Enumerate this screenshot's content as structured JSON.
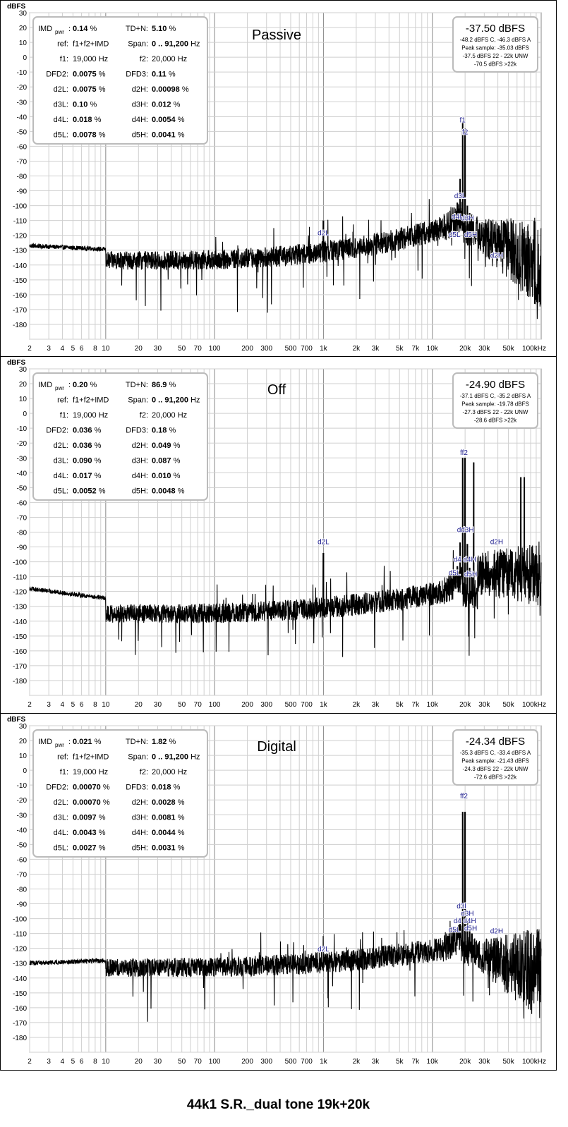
{
  "caption": "44k1 S.R._dual tone 19k+20k",
  "chart_data": [
    {
      "type": "line",
      "title": "Passive",
      "ylabel": "dBFS",
      "xlabel": "",
      "x_scale": "log",
      "xlim": [
        2,
        100000
      ],
      "ylim": [
        -190,
        30
      ],
      "grid": true,
      "x_ticks": [
        2,
        3,
        4,
        5,
        6,
        8,
        10,
        20,
        30,
        50,
        70,
        100,
        200,
        300,
        500,
        700,
        1000,
        2000,
        3000,
        5000,
        7000,
        10000,
        20000,
        30000,
        50000,
        100000
      ],
      "x_tick_labels": [
        "2",
        "3",
        "4",
        "5",
        "6",
        "8",
        "10",
        "20",
        "30",
        "50",
        "70",
        "100",
        "200",
        "300",
        "500",
        "700",
        "1k",
        "2k",
        "3k",
        "5k",
        "7k",
        "10k",
        "20k",
        "30k",
        "50k",
        "100kHz"
      ],
      "y_ticks": [
        30,
        20,
        10,
        0,
        -10,
        -20,
        -30,
        -40,
        -50,
        -60,
        -70,
        -80,
        -90,
        -100,
        -110,
        -120,
        -130,
        -140,
        -150,
        -160,
        -170,
        -180
      ],
      "info_box": [
        {
          "label": "IMD",
          "sub": "pwr",
          "value": "0.14",
          "unit": "%",
          "label2": "TD+N:",
          "value2": "5.10",
          "unit2": "%"
        },
        {
          "label": "ref:",
          "plain": "f1+f2+IMD",
          "label2": "Span:",
          "value2": "0 .. 91,200",
          "unit2": "Hz"
        },
        {
          "label": "f1:",
          "plain": "19,000 Hz",
          "label2": "f2:",
          "plain2": "20,000 Hz"
        },
        {
          "label": "DFD2:",
          "value": "0.0075",
          "unit": "%",
          "label2": "DFD3:",
          "value2": "0.11",
          "unit2": "%"
        },
        {
          "label": "d2L:",
          "value": "0.0075",
          "unit": "%",
          "label2": "d2H:",
          "value2": "0.00098",
          "unit2": "%"
        },
        {
          "label": "d3L:",
          "value": "0.10",
          "unit": "%",
          "label2": "d3H:",
          "value2": "0.012",
          "unit2": "%"
        },
        {
          "label": "d4L:",
          "value": "0.018",
          "unit": "%",
          "label2": "d4H:",
          "value2": "0.0054",
          "unit2": "%"
        },
        {
          "label": "d5L:",
          "value": "0.0078",
          "unit": "%",
          "label2": "d5H:",
          "value2": "0.0041",
          "unit2": "%"
        }
      ],
      "level_box": {
        "main": "-37.50 dBFS",
        "lines": [
          "-48.2 dBFS C, -46.3 dBFS A",
          "Peak sample: -35.03 dBFS",
          "-37.5 dBFS 22 - 22k UNW",
          "-70.5 dBFS >22k"
        ]
      },
      "floor_start": -127,
      "floor_mid": -137,
      "floor_rise": -115,
      "hf_behavior": "decay",
      "hf_level": -140,
      "peaks": [
        {
          "x": 19000,
          "y": -44,
          "label": "f1"
        },
        {
          "x": 20000,
          "y": -48,
          "label": "f2"
        },
        {
          "x": 18000,
          "y": -82,
          "label": "d3L"
        },
        {
          "x": 21000,
          "y": -100,
          "label": "d3H"
        },
        {
          "x": 17000,
          "y": -98,
          "label": "d4L"
        },
        {
          "x": 22000,
          "y": -105,
          "label": "d4H"
        },
        {
          "x": 16000,
          "y": -106,
          "label": "d5L"
        },
        {
          "x": 23000,
          "y": -106,
          "label": "d5H"
        },
        {
          "x": 1000,
          "y": -110,
          "label": "d2L"
        },
        {
          "x": 39000,
          "y": -125,
          "label": "d2H"
        }
      ],
      "annotations": [
        {
          "text": "f1",
          "x": 19000,
          "y": -44
        },
        {
          "text": "f2",
          "x": 20000,
          "y": -52
        },
        {
          "text": "d3L",
          "x": 18000,
          "y": -95
        },
        {
          "text": "d4L",
          "x": 17000,
          "y": -109
        },
        {
          "text": "d3H",
          "x": 21000,
          "y": -110
        },
        {
          "text": "d5L",
          "x": 16000,
          "y": -121
        },
        {
          "text": "d5H",
          "x": 22500,
          "y": -121
        },
        {
          "text": "d2L",
          "x": 1000,
          "y": -120
        },
        {
          "text": "d2H",
          "x": 39000,
          "y": -135
        }
      ]
    },
    {
      "type": "line",
      "title": "Off",
      "ylabel": "dBFS",
      "xlabel": "",
      "x_scale": "log",
      "xlim": [
        2,
        100000
      ],
      "ylim": [
        -190,
        30
      ],
      "grid": true,
      "x_ticks": [
        2,
        3,
        4,
        5,
        6,
        8,
        10,
        20,
        30,
        50,
        70,
        100,
        200,
        300,
        500,
        700,
        1000,
        2000,
        3000,
        5000,
        7000,
        10000,
        20000,
        30000,
        50000,
        100000
      ],
      "x_tick_labels": [
        "2",
        "3",
        "4",
        "5",
        "6",
        "8",
        "10",
        "20",
        "30",
        "50",
        "70",
        "100",
        "200",
        "300",
        "500",
        "700",
        "1k",
        "2k",
        "3k",
        "5k",
        "7k",
        "10k",
        "20k",
        "30k",
        "50k",
        "100kHz"
      ],
      "y_ticks": [
        30,
        20,
        10,
        0,
        -10,
        -20,
        -30,
        -40,
        -50,
        -60,
        -70,
        -80,
        -90,
        -100,
        -110,
        -120,
        -130,
        -140,
        -150,
        -160,
        -170,
        -180
      ],
      "info_box": [
        {
          "label": "IMD",
          "sub": "pwr",
          "value": "0.20",
          "unit": "%",
          "label2": "TD+N:",
          "value2": "86.9",
          "unit2": "%"
        },
        {
          "label": "ref:",
          "plain": "f1+f2+IMD",
          "label2": "Span:",
          "value2": "0 .. 91,200",
          "unit2": "Hz"
        },
        {
          "label": "f1:",
          "plain": "19,000 Hz",
          "label2": "f2:",
          "plain2": "20,000 Hz"
        },
        {
          "label": "DFD2:",
          "value": "0.036",
          "unit": "%",
          "label2": "DFD3:",
          "value2": "0.18",
          "unit2": "%"
        },
        {
          "label": "d2L:",
          "value": "0.036",
          "unit": "%",
          "label2": "d2H:",
          "value2": "0.049",
          "unit2": "%"
        },
        {
          "label": "d3L:",
          "value": "0.090",
          "unit": "%",
          "label2": "d3H:",
          "value2": "0.087",
          "unit2": "%"
        },
        {
          "label": "d4L:",
          "value": "0.017",
          "unit": "%",
          "label2": "d4H:",
          "value2": "0.010",
          "unit2": "%"
        },
        {
          "label": "d5L:",
          "value": "0.0052",
          "unit": "%",
          "label2": "d5H:",
          "value2": "0.0048",
          "unit2": "%"
        }
      ],
      "level_box": {
        "main": "-24.90 dBFS",
        "lines": [
          "-37.1 dBFS C, -35.2 dBFS A",
          "Peak sample: -19.78 dBFS",
          "-27.3 dBFS 22 - 22k UNW",
          "-28.6 dBFS >22k"
        ]
      },
      "floor_start": -118,
      "floor_mid": -135,
      "floor_rise": -120,
      "hf_behavior": "high",
      "hf_level": -108,
      "peaks": [
        {
          "x": 19000,
          "y": -30,
          "label": "f1"
        },
        {
          "x": 20000,
          "y": -30,
          "label": "f2"
        },
        {
          "x": 24000,
          "y": -33,
          "label": ""
        },
        {
          "x": 65000,
          "y": -43,
          "label": ""
        },
        {
          "x": 70000,
          "y": -43,
          "label": ""
        },
        {
          "x": 18000,
          "y": -87,
          "label": "d3L"
        },
        {
          "x": 21000,
          "y": -88,
          "label": "d3H"
        },
        {
          "x": 17000,
          "y": -103,
          "label": "d4L"
        },
        {
          "x": 22000,
          "y": -104,
          "label": "d4H"
        },
        {
          "x": 16000,
          "y": -110,
          "label": "d5L"
        },
        {
          "x": 23000,
          "y": -110,
          "label": "d5H"
        },
        {
          "x": 1000,
          "y": -94,
          "label": "d2L"
        },
        {
          "x": 39000,
          "y": -99,
          "label": "d2H"
        }
      ],
      "annotations": [
        {
          "text": "ff2",
          "x": 19500,
          "y": -28
        },
        {
          "text": "d",
          "x": 17600,
          "y": -80
        },
        {
          "text": "d3H",
          "x": 21000,
          "y": -80
        },
        {
          "text": "d2H",
          "x": 39000,
          "y": -88
        },
        {
          "text": "d4",
          "x": 17000,
          "y": -100
        },
        {
          "text": "d4H",
          "x": 22000,
          "y": -100
        },
        {
          "text": "d5L",
          "x": 16000,
          "y": -109
        },
        {
          "text": "d5H",
          "x": 22500,
          "y": -110
        },
        {
          "text": "d2L",
          "x": 1000,
          "y": -88
        }
      ]
    },
    {
      "type": "line",
      "title": "Digital",
      "ylabel": "dBFS",
      "xlabel": "",
      "x_scale": "log",
      "xlim": [
        2,
        100000
      ],
      "ylim": [
        -190,
        30
      ],
      "grid": true,
      "x_ticks": [
        2,
        3,
        4,
        5,
        6,
        8,
        10,
        20,
        30,
        50,
        70,
        100,
        200,
        300,
        500,
        700,
        1000,
        2000,
        3000,
        5000,
        7000,
        10000,
        20000,
        30000,
        50000,
        100000
      ],
      "x_tick_labels": [
        "2",
        "3",
        "4",
        "5",
        "6",
        "8",
        "10",
        "20",
        "30",
        "50",
        "70",
        "100",
        "200",
        "300",
        "500",
        "700",
        "1k",
        "2k",
        "3k",
        "5k",
        "7k",
        "10k",
        "20k",
        "30k",
        "50k",
        "100kHz"
      ],
      "y_ticks": [
        30,
        20,
        10,
        0,
        -10,
        -20,
        -30,
        -40,
        -50,
        -60,
        -70,
        -80,
        -90,
        -100,
        -110,
        -120,
        -130,
        -140,
        -150,
        -160,
        -170,
        -180
      ],
      "info_box": [
        {
          "label": "IMD",
          "sub": "pwr",
          "value": "0.021",
          "unit": "%",
          "label2": "TD+N:",
          "value2": "1.82",
          "unit2": "%"
        },
        {
          "label": "ref:",
          "plain": "f1+f2+IMD",
          "label2": "Span:",
          "value2": "0 .. 91,200",
          "unit2": "Hz"
        },
        {
          "label": "f1:",
          "plain": "19,000 Hz",
          "label2": "f2:",
          "plain2": "20,000 Hz"
        },
        {
          "label": "DFD2:",
          "value": "0.00070",
          "unit": "%",
          "label2": "DFD3:",
          "value2": "0.018",
          "unit2": "%"
        },
        {
          "label": "d2L:",
          "value": "0.00070",
          "unit": "%",
          "label2": "d2H:",
          "value2": "0.0028",
          "unit2": "%"
        },
        {
          "label": "d3L:",
          "value": "0.0097",
          "unit": "%",
          "label2": "d3H:",
          "value2": "0.0081",
          "unit2": "%"
        },
        {
          "label": "d4L:",
          "value": "0.0043",
          "unit": "%",
          "label2": "d4H:",
          "value2": "0.0044",
          "unit2": "%"
        },
        {
          "label": "d5L:",
          "value": "0.0027",
          "unit": "%",
          "label2": "d5H:",
          "value2": "0.0031",
          "unit2": "%"
        }
      ],
      "level_box": {
        "main": "-24.34 dBFS",
        "lines": [
          "-35.3 dBFS C, -33.4 dBFS A",
          "Peak sample: -21.43 dBFS",
          "-24.3 dBFS 22 - 22k UNW",
          "-72.6 dBFS >22k"
        ]
      },
      "floor_start": -130,
      "floor_mid": -133,
      "floor_rise": -120,
      "hf_behavior": "decay",
      "hf_level": -138,
      "peaks": [
        {
          "x": 19000,
          "y": -28,
          "label": "f1"
        },
        {
          "x": 20000,
          "y": -28,
          "label": "f2"
        },
        {
          "x": 18000,
          "y": -100,
          "label": "d3L"
        },
        {
          "x": 21000,
          "y": -101,
          "label": "d3H"
        },
        {
          "x": 17000,
          "y": -106,
          "label": "d4L"
        },
        {
          "x": 22000,
          "y": -107,
          "label": "d4H"
        },
        {
          "x": 16000,
          "y": -110,
          "label": "d5L"
        },
        {
          "x": 23000,
          "y": -110,
          "label": "d5H"
        },
        {
          "x": 1000,
          "y": -128,
          "label": "d2L"
        },
        {
          "x": 39000,
          "y": -118,
          "label": "d2H"
        }
      ],
      "annotations": [
        {
          "text": "ff2",
          "x": 19500,
          "y": -19
        },
        {
          "text": "d3l",
          "x": 18500,
          "y": -93
        },
        {
          "text": "d3H",
          "x": 21000,
          "y": -98
        },
        {
          "text": "d4",
          "x": 17000,
          "y": -103
        },
        {
          "text": "d4H",
          "x": 22000,
          "y": -103
        },
        {
          "text": "d5L",
          "x": 16000,
          "y": -109
        },
        {
          "text": "d5H",
          "x": 22500,
          "y": -108
        },
        {
          "text": "d2H",
          "x": 39000,
          "y": -110
        },
        {
          "text": "d2L",
          "x": 1000,
          "y": -122
        }
      ]
    }
  ]
}
